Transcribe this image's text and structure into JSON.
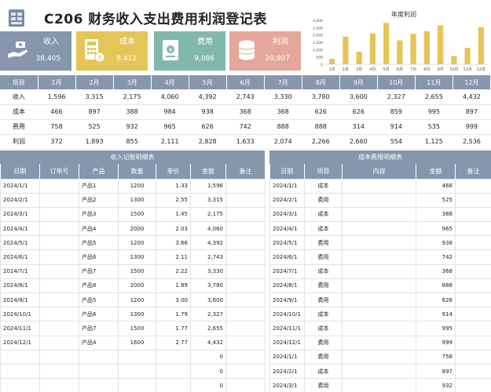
{
  "header": {
    "title": "C206 财务收入支出费用利润登记表"
  },
  "cards": [
    {
      "key": "income",
      "label": "收入",
      "value": "38,405",
      "icon": "hand-money-icon"
    },
    {
      "key": "cost",
      "label": "成本",
      "value": "8,412",
      "icon": "calculator-icon"
    },
    {
      "key": "expense",
      "label": "费用",
      "value": "9,086",
      "icon": "receipt-icon"
    },
    {
      "key": "profit",
      "label": "利润",
      "value": "20,907",
      "icon": "coins-icon"
    }
  ],
  "colors": {
    "accent": "#8596ad",
    "cost": "#e5c558",
    "expense": "#82b8ac",
    "profit": "#e4a79c",
    "bar": "#e5c558"
  },
  "chart_data": {
    "type": "bar",
    "title": "年度利润",
    "categories": [
      "1月",
      "2月",
      "3月",
      "4月",
      "5月",
      "6月",
      "7月",
      "8月",
      "9月",
      "10月",
      "11月",
      "12月"
    ],
    "values": [
      372,
      1893,
      855,
      2111,
      2828,
      1633,
      2074,
      2266,
      2660,
      554,
      1125,
      2536
    ],
    "yticks": [
      "0",
      "500",
      "1,000",
      "1,500",
      "2,000",
      "2,500",
      "3,000"
    ],
    "ylim": [
      0,
      3000
    ],
    "grid": false
  },
  "summary": {
    "headers": [
      "项目",
      "1月",
      "2月",
      "3月",
      "4月",
      "5月",
      "6月",
      "7月",
      "8月",
      "9月",
      "10月",
      "11月",
      "12月"
    ],
    "rows": [
      [
        "收入",
        "1,596",
        "3,315",
        "2,175",
        "4,060",
        "4,392",
        "2,743",
        "3,330",
        "3,780",
        "3,600",
        "2,327",
        "2,655",
        "4,432"
      ],
      [
        "成本",
        "466",
        "897",
        "388",
        "984",
        "938",
        "368",
        "368",
        "626",
        "626",
        "859",
        "995",
        "897"
      ],
      [
        "费用",
        "758",
        "525",
        "932",
        "965",
        "626",
        "742",
        "888",
        "888",
        "314",
        "914",
        "535",
        "999"
      ],
      [
        "利润",
        "372",
        "1,893",
        "855",
        "2,111",
        "2,828",
        "1,633",
        "2,074",
        "2,266",
        "2,660",
        "554",
        "1,125",
        "2,536"
      ]
    ]
  },
  "income_detail": {
    "title": "收入记账明细表",
    "headers": [
      "日期",
      "订单号",
      "产品",
      "数量",
      "单价",
      "金额",
      "备注"
    ],
    "rows": [
      [
        "2024/1/1",
        "",
        "产品1",
        "1200",
        "1.33",
        "1,596",
        ""
      ],
      [
        "2024/2/1",
        "",
        "产品2",
        "1300",
        "2.55",
        "3,315",
        ""
      ],
      [
        "2024/3/1",
        "",
        "产品3",
        "1500",
        "1.45",
        "2,175",
        ""
      ],
      [
        "2024/4/1",
        "",
        "产品4",
        "2000",
        "2.03",
        "4,060",
        ""
      ],
      [
        "2024/5/1",
        "",
        "产品5",
        "1200",
        "3.66",
        "4,392",
        ""
      ],
      [
        "2024/6/1",
        "",
        "产品6",
        "1300",
        "2.11",
        "2,743",
        ""
      ],
      [
        "2024/7/1",
        "",
        "产品7",
        "1500",
        "2.22",
        "3,330",
        ""
      ],
      [
        "2024/8/1",
        "",
        "产品8",
        "2000",
        "1.89",
        "3,780",
        ""
      ],
      [
        "2024/9/1",
        "",
        "产品5",
        "1200",
        "3.00",
        "3,600",
        ""
      ],
      [
        "2024/10/1",
        "",
        "产品6",
        "1300",
        "1.79",
        "2,327",
        ""
      ],
      [
        "2024/11/1",
        "",
        "产品7",
        "1500",
        "1.77",
        "2,655",
        ""
      ],
      [
        "2024/12/1",
        "",
        "产品4",
        "1600",
        "2.77",
        "4,432",
        ""
      ],
      [
        "",
        "",
        "",
        "",
        "",
        "0",
        ""
      ],
      [
        "",
        "",
        "",
        "",
        "",
        "0",
        ""
      ],
      [
        "",
        "",
        "",
        "",
        "",
        "0",
        ""
      ]
    ]
  },
  "cost_detail": {
    "title": "成本费用明细表",
    "headers": [
      "日期",
      "项目",
      "内容",
      "金额",
      "备注"
    ],
    "rows": [
      [
        "2024/1/1",
        "成本",
        "",
        "466",
        ""
      ],
      [
        "2024/2/1",
        "费用",
        "",
        "525",
        ""
      ],
      [
        "2024/3/1",
        "成本",
        "",
        "388",
        ""
      ],
      [
        "2024/4/1",
        "成本",
        "",
        "965",
        ""
      ],
      [
        "2024/5/1",
        "费用",
        "",
        "938",
        ""
      ],
      [
        "2024/6/1",
        "费用",
        "",
        "742",
        ""
      ],
      [
        "2024/7/1",
        "成本",
        "",
        "368",
        ""
      ],
      [
        "2024/8/1",
        "费用",
        "",
        "888",
        ""
      ],
      [
        "2024/9/1",
        "费用",
        "",
        "626",
        ""
      ],
      [
        "2024/10/1",
        "成本",
        "",
        "914",
        ""
      ],
      [
        "2024/11/1",
        "成本",
        "",
        "995",
        ""
      ],
      [
        "2024/12/1",
        "费用",
        "",
        "999",
        ""
      ],
      [
        "2024/1/1",
        "费用",
        "",
        "758",
        ""
      ],
      [
        "2024/2/1",
        "成本",
        "",
        "897",
        ""
      ],
      [
        "2024/3/1",
        "费用",
        "",
        "932",
        ""
      ]
    ]
  }
}
